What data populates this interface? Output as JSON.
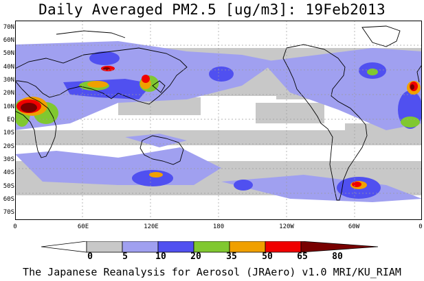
{
  "title": "Daily Averaged PM2.5 [ug/m3]: 19Feb2013",
  "credit": "The Japanese Reanalysis for Aerosol (JRAero) v1.0 MRI/KU_RIAM",
  "lat_labels": [
    "70N",
    "60N",
    "50N",
    "40N",
    "30N",
    "20N",
    "10N",
    "EQ",
    "10S",
    "20S",
    "30S",
    "40S",
    "50S",
    "60S",
    "70S"
  ],
  "lon_labels": [
    "0",
    "60E",
    "120E",
    "180",
    "120W",
    "60W",
    "0"
  ],
  "legend": {
    "labels": [
      "0",
      "5",
      "10",
      "20",
      "35",
      "50",
      "65",
      "80"
    ],
    "colors": [
      "#ffffff",
      "#c8c8c8",
      "#a0a0f0",
      "#5050f0",
      "#80c830",
      "#f0a000",
      "#f00000",
      "#780000"
    ]
  },
  "colors": {
    "very_low": "#ffffff",
    "low": "#c8c8c8",
    "moderate": "#a0a0f0",
    "elevated": "#5050f0",
    "high": "#80c830",
    "very_high": "#f0a000",
    "severe": "#f00000",
    "extreme": "#780000"
  }
}
